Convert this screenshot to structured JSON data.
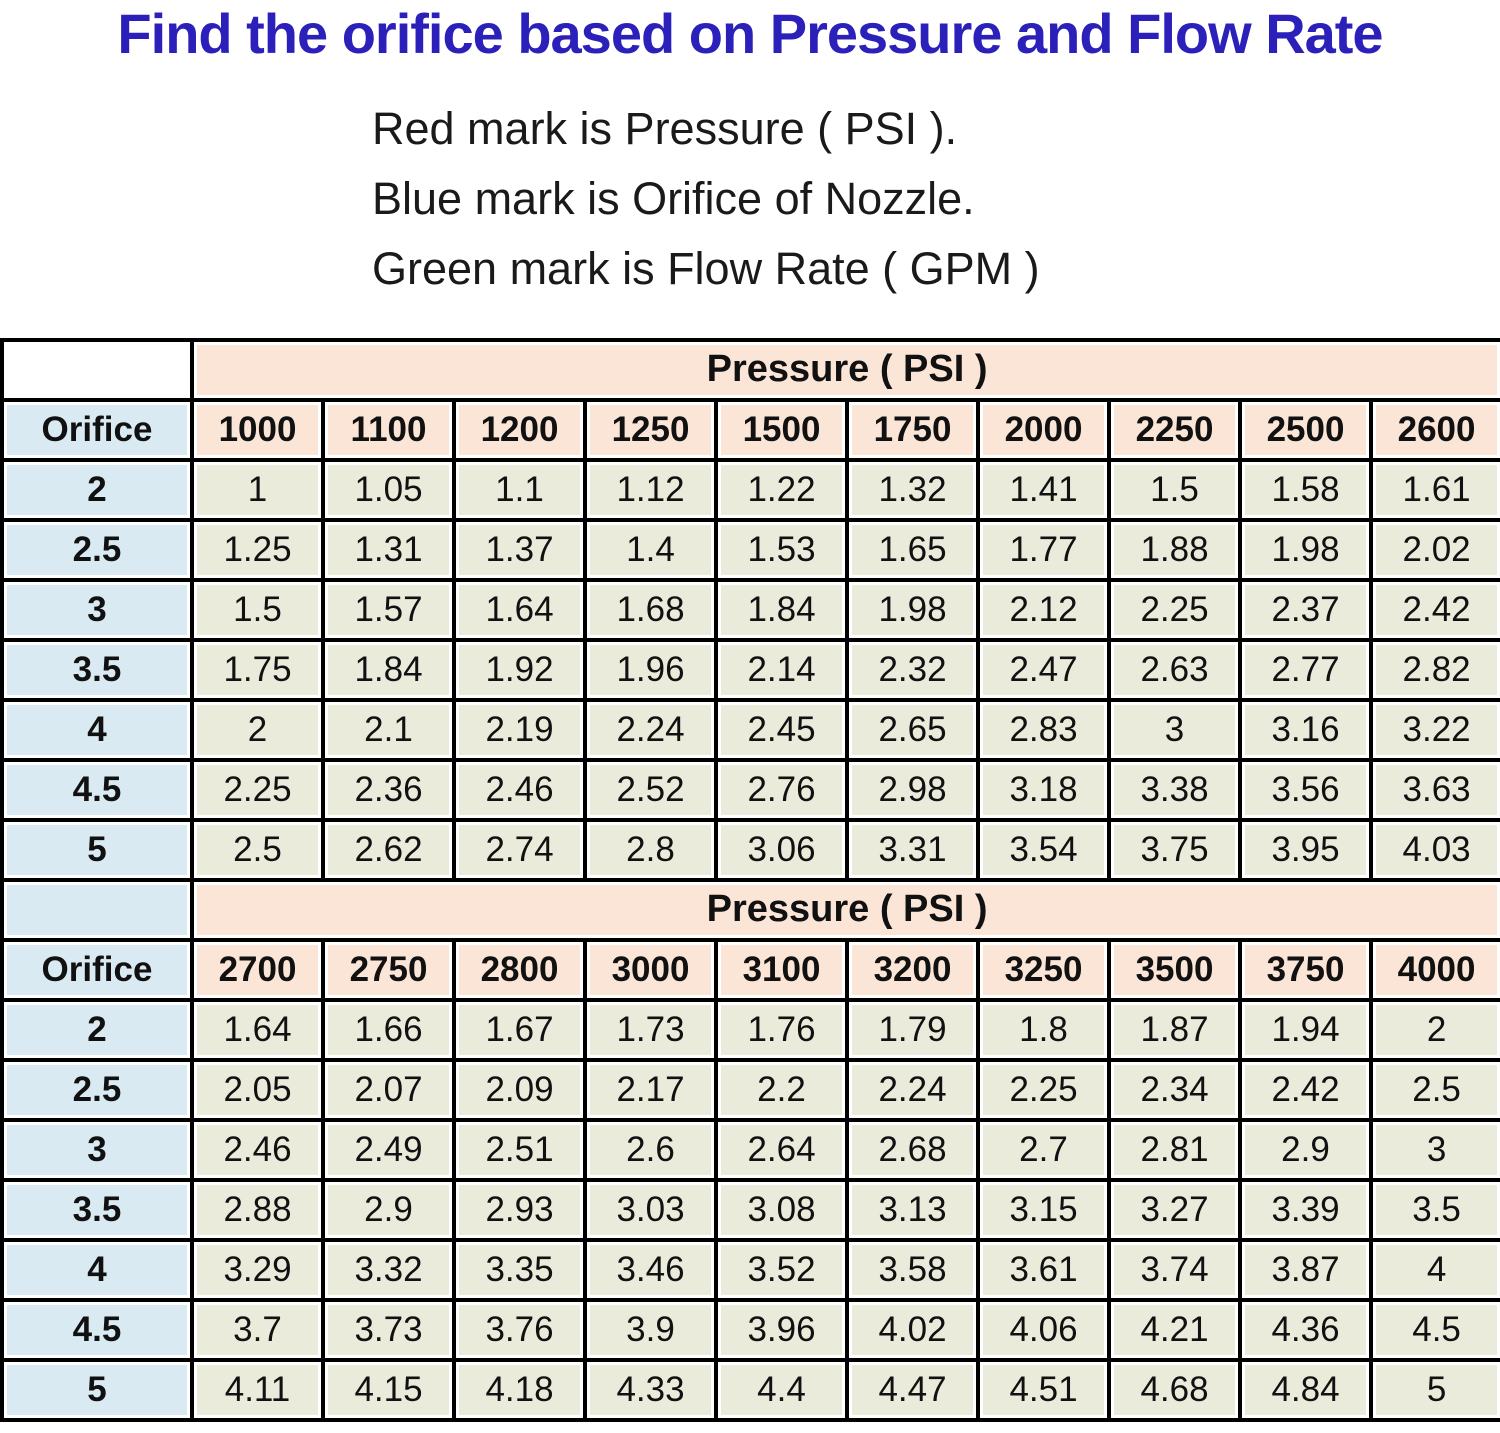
{
  "title": "Find the orifice based on Pressure and Flow Rate",
  "legend_lines": [
    "Red mark is Pressure ( PSI ).",
    "Blue mark is Orifice of Nozzle.",
    "Green mark is Flow Rate ( GPM )"
  ],
  "colors": {
    "title_text": "#2c20bb",
    "pressure_header_bg": "#fbe5d6",
    "orifice_col_bg": "#d9eaf3",
    "data_cell_bg": "#eaebdb",
    "corner_cell_section1_bg": "#ffffff",
    "corner_cell_section2_bg": "#d9eaf3",
    "grid_border": "#000000"
  },
  "chart_data": {
    "type": "table",
    "title": "Find the orifice based on Pressure and Flow Rate",
    "sections": [
      {
        "header": "Pressure ( PSI )",
        "orifice_label": "Orifice",
        "pressures": [
          "1000",
          "1100",
          "1200",
          "1250",
          "1500",
          "1750",
          "2000",
          "2250",
          "2500",
          "2600"
        ],
        "rows": [
          {
            "orifice": "2",
            "values": [
              "1",
              "1.05",
              "1.1",
              "1.12",
              "1.22",
              "1.32",
              "1.41",
              "1.5",
              "1.58",
              "1.61"
            ]
          },
          {
            "orifice": "2.5",
            "values": [
              "1.25",
              "1.31",
              "1.37",
              "1.4",
              "1.53",
              "1.65",
              "1.77",
              "1.88",
              "1.98",
              "2.02"
            ]
          },
          {
            "orifice": "3",
            "values": [
              "1.5",
              "1.57",
              "1.64",
              "1.68",
              "1.84",
              "1.98",
              "2.12",
              "2.25",
              "2.37",
              "2.42"
            ]
          },
          {
            "orifice": "3.5",
            "values": [
              "1.75",
              "1.84",
              "1.92",
              "1.96",
              "2.14",
              "2.32",
              "2.47",
              "2.63",
              "2.77",
              "2.82"
            ]
          },
          {
            "orifice": "4",
            "values": [
              "2",
              "2.1",
              "2.19",
              "2.24",
              "2.45",
              "2.65",
              "2.83",
              "3",
              "3.16",
              "3.22"
            ]
          },
          {
            "orifice": "4.5",
            "values": [
              "2.25",
              "2.36",
              "2.46",
              "2.52",
              "2.76",
              "2.98",
              "3.18",
              "3.38",
              "3.56",
              "3.63"
            ]
          },
          {
            "orifice": "5",
            "values": [
              "2.5",
              "2.62",
              "2.74",
              "2.8",
              "3.06",
              "3.31",
              "3.54",
              "3.75",
              "3.95",
              "4.03"
            ]
          }
        ]
      },
      {
        "header": "Pressure ( PSI )",
        "orifice_label": "Orifice",
        "pressures": [
          "2700",
          "2750",
          "2800",
          "3000",
          "3100",
          "3200",
          "3250",
          "3500",
          "3750",
          "4000"
        ],
        "rows": [
          {
            "orifice": "2",
            "values": [
              "1.64",
              "1.66",
              "1.67",
              "1.73",
              "1.76",
              "1.79",
              "1.8",
              "1.87",
              "1.94",
              "2"
            ]
          },
          {
            "orifice": "2.5",
            "values": [
              "2.05",
              "2.07",
              "2.09",
              "2.17",
              "2.2",
              "2.24",
              "2.25",
              "2.34",
              "2.42",
              "2.5"
            ]
          },
          {
            "orifice": "3",
            "values": [
              "2.46",
              "2.49",
              "2.51",
              "2.6",
              "2.64",
              "2.68",
              "2.7",
              "2.81",
              "2.9",
              "3"
            ]
          },
          {
            "orifice": "3.5",
            "values": [
              "2.88",
              "2.9",
              "2.93",
              "3.03",
              "3.08",
              "3.13",
              "3.15",
              "3.27",
              "3.39",
              "3.5"
            ]
          },
          {
            "orifice": "4",
            "values": [
              "3.29",
              "3.32",
              "3.35",
              "3.46",
              "3.52",
              "3.58",
              "3.61",
              "3.74",
              "3.87",
              "4"
            ]
          },
          {
            "orifice": "4.5",
            "values": [
              "3.7",
              "3.73",
              "3.76",
              "3.9",
              "3.96",
              "4.02",
              "4.06",
              "4.21",
              "4.36",
              "4.5"
            ]
          },
          {
            "orifice": "5",
            "values": [
              "4.11",
              "4.15",
              "4.18",
              "4.33",
              "4.4",
              "4.47",
              "4.51",
              "4.68",
              "4.84",
              "5"
            ]
          }
        ]
      }
    ]
  }
}
